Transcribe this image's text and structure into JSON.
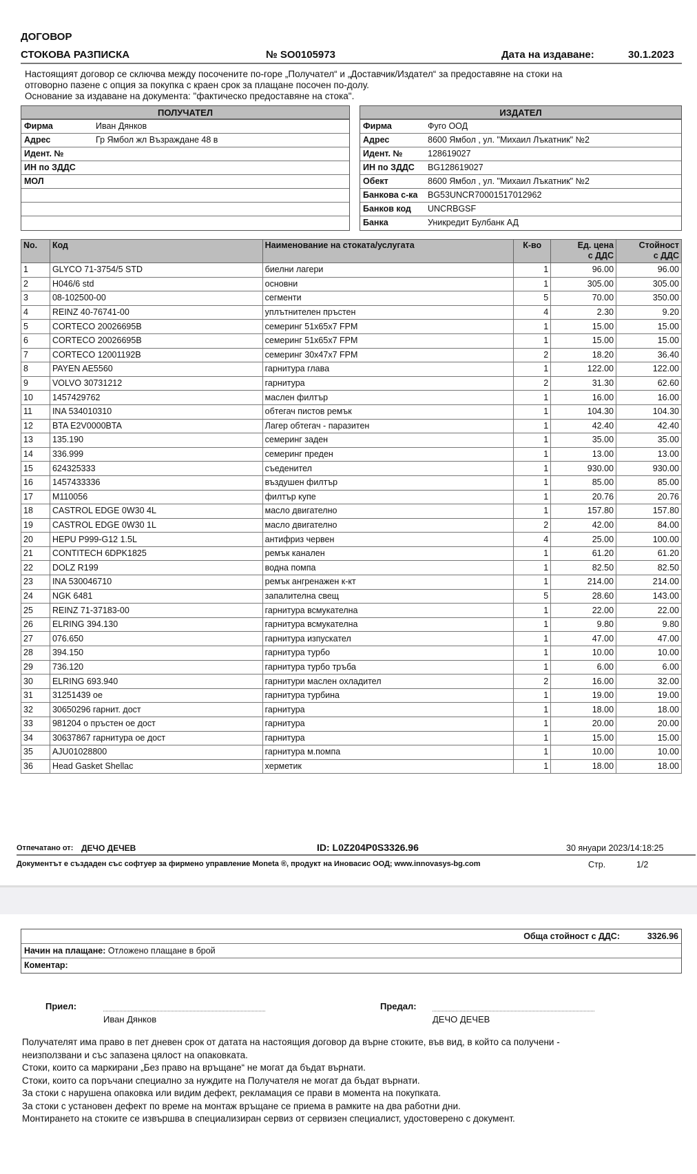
{
  "header": {
    "title": "ДОГОВОР",
    "subtitle": "СТОКОВА РАЗПИСКА",
    "number": "№ SO0105973",
    "date_label": "Дата на издаване:",
    "date": "30.1.2023"
  },
  "intro": [
    "Настоящият договор се сключва между посочените по-горе „Получател“ и „Доставчик/Издател“ за предоставяне на стоки на",
    "отговорно пазене с опция за покупка с краен срок за плащане посочен по-долу.",
    "Основание за издаване на документа: \"фактическо предоставяне на стока\"."
  ],
  "recipient": {
    "title": "ПОЛУЧАТЕЛ",
    "rows": [
      {
        "k": "Фирма",
        "v": "Иван Дянков"
      },
      {
        "k": "Адрес",
        "v": "Гр Ямбол жл Възраждане 48 в"
      },
      {
        "k": "Идент. №",
        "v": ""
      },
      {
        "k": "ИН по ЗДДС",
        "v": ""
      },
      {
        "k": "МОЛ",
        "v": ""
      },
      {
        "k": "",
        "v": ""
      },
      {
        "k": "",
        "v": ""
      },
      {
        "k": "",
        "v": ""
      }
    ]
  },
  "issuer": {
    "title": "ИЗДАТЕЛ",
    "rows": [
      {
        "k": "Фирма",
        "v": "Фуго ООД"
      },
      {
        "k": "Адрес",
        "v": "8600 Ямбол , ул. \"Михаил Лъкатник\" №2"
      },
      {
        "k": "Идент. №",
        "v": "128619027"
      },
      {
        "k": "ИН по ЗДДС",
        "v": "BG128619027"
      },
      {
        "k": "Обект",
        "v": "8600 Ямбол , ул. \"Михаил Лъкатник\" №2"
      },
      {
        "k": "Банкова с-ка",
        "v": "BG53UNCR70001517012962"
      },
      {
        "k": "Банков код",
        "v": "UNCRBGSF"
      },
      {
        "k": "Банка",
        "v": "Уникредит Булбанк АД"
      }
    ]
  },
  "items_table": {
    "columns": [
      "No.",
      "Код",
      "Наименование на стоката/услугата",
      "К-во",
      "Ед. цена\nс ДДС",
      "Стойност\nс ДДС"
    ],
    "rows": [
      [
        "1",
        "GLYCO 71-3754/5 STD",
        "биелни лагери",
        "1",
        "96.00",
        "96.00"
      ],
      [
        "2",
        "H046/6 std",
        "основни",
        "1",
        "305.00",
        "305.00"
      ],
      [
        "3",
        "08-102500-00",
        "сегменти",
        "5",
        "70.00",
        "350.00"
      ],
      [
        "4",
        "REINZ 40-76741-00",
        "уплътнителен пръстен",
        "4",
        "2.30",
        "9.20"
      ],
      [
        "5",
        "CORTECO 20026695B",
        "семеринг 51х65х7 FPM",
        "1",
        "15.00",
        "15.00"
      ],
      [
        "6",
        "CORTECO 20026695B",
        "семеринг 51х65х7 FPM",
        "1",
        "15.00",
        "15.00"
      ],
      [
        "7",
        "CORTECO 12001192B",
        "семеринг 30х47х7 FPM",
        "2",
        "18.20",
        "36.40"
      ],
      [
        "8",
        "PAYEN AE5560",
        "гарнитура глава",
        "1",
        "122.00",
        "122.00"
      ],
      [
        "9",
        "VOLVO 30731212",
        "гарнитура",
        "2",
        "31.30",
        "62.60"
      ],
      [
        "10",
        "1457429762",
        "маслен филтър",
        "1",
        "16.00",
        "16.00"
      ],
      [
        "11",
        "INA 534010310",
        "обтегач пистов ремък",
        "1",
        "104.30",
        "104.30"
      ],
      [
        "12",
        "BTA E2V0000BTA",
        "Лагер обтегач - паразитен",
        "1",
        "42.40",
        "42.40"
      ],
      [
        "13",
        "135.190",
        "семеринг заден",
        "1",
        "35.00",
        "35.00"
      ],
      [
        "14",
        "336.999",
        "семеринг преден",
        "1",
        "13.00",
        "13.00"
      ],
      [
        "15",
        "624325333",
        "съеденител",
        "1",
        "930.00",
        "930.00"
      ],
      [
        "16",
        "1457433336",
        "въздушен филтър",
        "1",
        "85.00",
        "85.00"
      ],
      [
        "17",
        "M110056",
        "филтър купе",
        "1",
        "20.76",
        "20.76"
      ],
      [
        "18",
        "CASTROL EDGE 0W30 4L",
        "масло двигателно",
        "1",
        "157.80",
        "157.80"
      ],
      [
        "19",
        "CASTROL EDGE 0W30 1L",
        "масло двигателно",
        "2",
        "42.00",
        "84.00"
      ],
      [
        "20",
        "HEPU P999-G12 1.5L",
        "антифриз червен",
        "4",
        "25.00",
        "100.00"
      ],
      [
        "21",
        "CONTITECH 6DPK1825",
        "ремък канален",
        "1",
        "61.20",
        "61.20"
      ],
      [
        "22",
        "DOLZ R199",
        "водна помпа",
        "1",
        "82.50",
        "82.50"
      ],
      [
        "23",
        "INA 530046710",
        "ремък ангренажен к-кт",
        "1",
        "214.00",
        "214.00"
      ],
      [
        "24",
        "NGK 6481",
        "запалителна свещ",
        "5",
        "28.60",
        "143.00"
      ],
      [
        "25",
        "REINZ 71-37183-00",
        "гарнитура всмукателна",
        "1",
        "22.00",
        "22.00"
      ],
      [
        "26",
        "ELRING 394.130",
        "гарнитура всмукателна",
        "1",
        "9.80",
        "9.80"
      ],
      [
        "27",
        "076.650",
        "гарнитура изпускател",
        "1",
        "47.00",
        "47.00"
      ],
      [
        "28",
        "394.150",
        "гарнитура турбо",
        "1",
        "10.00",
        "10.00"
      ],
      [
        "29",
        "736.120",
        "гарнитура турбо тръба",
        "1",
        "6.00",
        "6.00"
      ],
      [
        "30",
        "ELRING 693.940",
        "гарнитури маслен охладител",
        "2",
        "16.00",
        "32.00"
      ],
      [
        "31",
        "31251439 oe",
        "гарнитура  турбина",
        "1",
        "19.00",
        "19.00"
      ],
      [
        "32",
        "30650296 гарнит. дост",
        "гарнитура",
        "1",
        "18.00",
        "18.00"
      ],
      [
        "33",
        "981204  o пръстен oe дост",
        "гарнитура",
        "1",
        "20.00",
        "20.00"
      ],
      [
        "34",
        "30637867 гарнитура oe дост",
        "гарнитура",
        "1",
        "15.00",
        "15.00"
      ],
      [
        "35",
        "AJU01028800",
        "гарнитура м.помпа",
        "1",
        "10.00",
        "10.00"
      ],
      [
        "36",
        "Head Gasket Shellac",
        "херметик",
        "1",
        "18.00",
        "18.00"
      ]
    ]
  },
  "footer": {
    "printed_by_label": "Отпечатано от:",
    "printed_by": "ДЕЧО ДЕЧЕВ",
    "id": "ID: L0Z204P0S3326.96",
    "timestamp": "30 януари 2023/14:18:25",
    "software": "Документът е създаден със софтуер за фирмено управление Moneta ®, продукт на Иновасис ООД; www.innovasys-bg.com",
    "page_label": "Стр.",
    "page": "1/2"
  },
  "totals": {
    "total_label": "Обща стойност с ДДС:",
    "total": "3326.96",
    "payment_label": "Начин на плащане:",
    "payment": "Отложено плащане в брой",
    "comment_label": "Коментар:"
  },
  "signatures": {
    "received_label": "Приел:",
    "received_name": "Иван Дянков",
    "handed_label": "Предал:",
    "handed_name": "ДЕЧО ДЕЧЕВ"
  },
  "terms": [
    "Получателят има право  в пет дневен срок от датата на настоящия договор да върне стоките, във вид, в който са получени -",
    "неизползвани и със запазена цялост на опаковката.",
    "Стоки, които са маркирани „Без право на връщане“ не могат да бъдат върнати.",
    "Стоки, които са поръчани специално за нуждите на Получателя не могат да бъдат върнати.",
    "За стоки с нарушена опаковка или видим дефект,  рекламация се прави в момента на покупката.",
    "За стоки с установен дефект по време на монтаж връщане се приема в рамките на два работни дни.",
    "Монтирането на стоките се извършва в специализиран сервиз от сервизен специалист, удостоверено с документ."
  ]
}
